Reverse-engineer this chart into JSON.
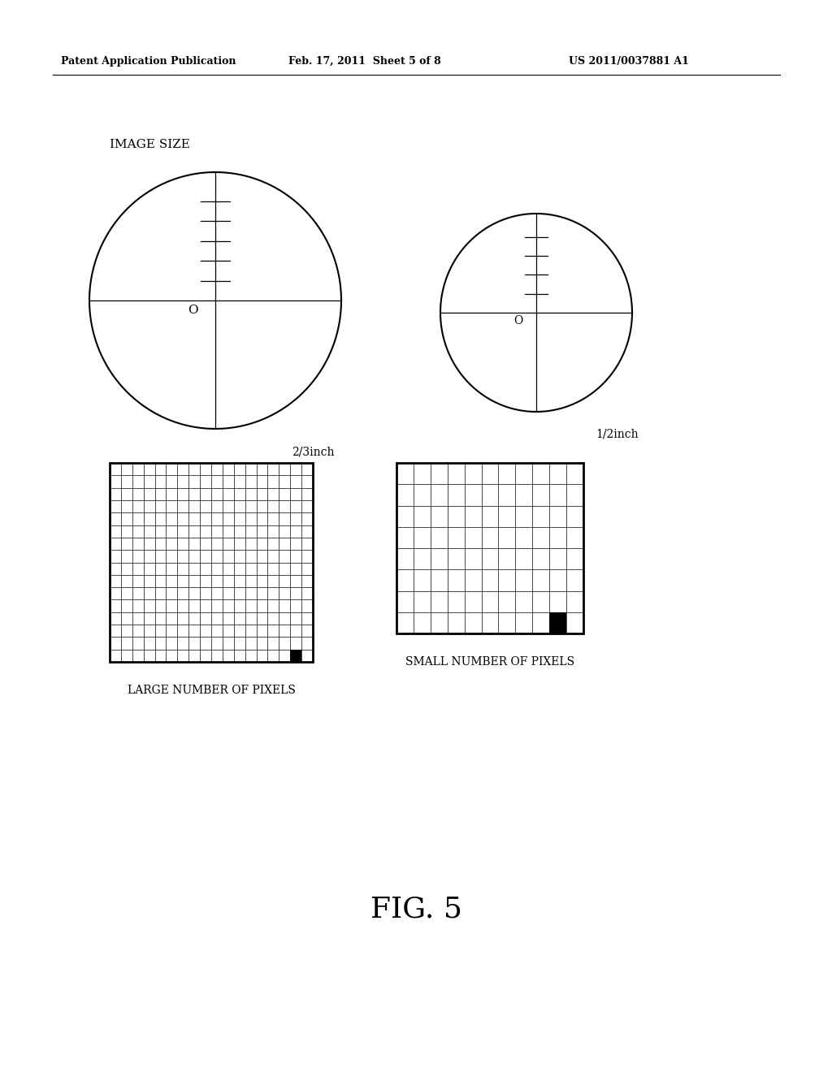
{
  "header_left": "Patent Application Publication",
  "header_mid": "Feb. 17, 2011  Sheet 5 of 8",
  "header_right": "US 2011/0037881 A1",
  "image_size_label": "IMAGE SIZE",
  "circle1_label": "2/3inch",
  "circle2_label": "1/2inch",
  "o_label": "O",
  "grid1_left_label": "LARGE NUMBER OF PIXELS",
  "grid2_right_label": "SMALL NUMBER OF PIXELS",
  "fig_label": "FIG. 5",
  "background_color": "#ffffff",
  "line_color": "#000000",
  "grid1_cols": 18,
  "grid1_rows": 16,
  "grid2_cols": 11,
  "grid2_rows": 8
}
